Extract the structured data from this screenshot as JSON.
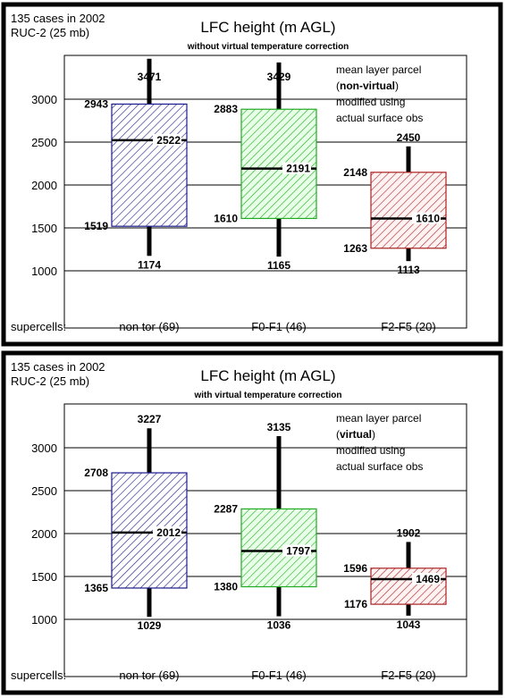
{
  "panels": [
    {
      "header_line1": "135 cases in 2002",
      "header_line2": "RUC-2 (25 mb)",
      "title": "LFC height  (m AGL)",
      "subtitle": "without virtual temperature correction",
      "legend_line1": "mean layer parcel",
      "legend_paren_open": "(",
      "legend_bold": "non-virtual",
      "legend_paren_close": ")",
      "legend_line3": "modified using",
      "legend_line4": "actual surface obs",
      "supercells_label": "supercells:"
    },
    {
      "header_line1": "135 cases in 2002",
      "header_line2": "RUC-2 (25 mb)",
      "title": "LFC height  (m AGL)",
      "subtitle": "with virtual temperature correction",
      "legend_line1": "mean layer parcel",
      "legend_paren_open": "(",
      "legend_bold": "virtual",
      "legend_paren_close": ")",
      "legend_line3": "modified using",
      "legend_line4": "actual surface obs",
      "supercells_label": "supercells:"
    }
  ],
  "colors": {
    "nontor": "#1a1a8c",
    "f0f1": "#22aa22",
    "f2f5": "#aa2222",
    "f0f1_bg": "#e8ffe8",
    "f2f5_bg": "#fff2f2"
  },
  "chart_data": [
    {
      "type": "box",
      "title": "LFC height  (m AGL)",
      "subtitle": "without virtual temperature correction",
      "ylim": [
        700,
        3500
      ],
      "yticks": [
        1000,
        1500,
        2000,
        2500,
        3000
      ],
      "categories": [
        "non tor (69)",
        "F0-F1 (46)",
        "F2-F5 (20)"
      ],
      "boxes": [
        {
          "category": "non tor (69)",
          "whisker_high": 3471,
          "q3": 2943,
          "median": 2522,
          "q1": 1519,
          "whisker_low": 1174
        },
        {
          "category": "F0-F1 (46)",
          "whisker_high": 3429,
          "q3": 2883,
          "median": 2191,
          "q1": 1610,
          "whisker_low": 1165
        },
        {
          "category": "F2-F5 (20)",
          "whisker_high": 2450,
          "q3": 2148,
          "median": 1610,
          "q1": 1263,
          "whisker_low": 1113
        }
      ]
    },
    {
      "type": "box",
      "title": "LFC height  (m AGL)",
      "subtitle": "with virtual temperature correction",
      "ylim": [
        700,
        3500
      ],
      "yticks": [
        1000,
        1500,
        2000,
        2500,
        3000
      ],
      "categories": [
        "non tor (69)",
        "F0-F1 (46)",
        "F2-F5 (20)"
      ],
      "boxes": [
        {
          "category": "non tor (69)",
          "whisker_high": 3227,
          "q3": 2708,
          "median": 2012,
          "q1": 1365,
          "whisker_low": 1029
        },
        {
          "category": "F0-F1 (46)",
          "whisker_high": 3135,
          "q3": 2287,
          "median": 1797,
          "q1": 1380,
          "whisker_low": 1036
        },
        {
          "category": "F2-F5 (20)",
          "whisker_high": 1902,
          "q3": 1596,
          "median": 1469,
          "q1": 1176,
          "whisker_low": 1043
        }
      ]
    }
  ]
}
